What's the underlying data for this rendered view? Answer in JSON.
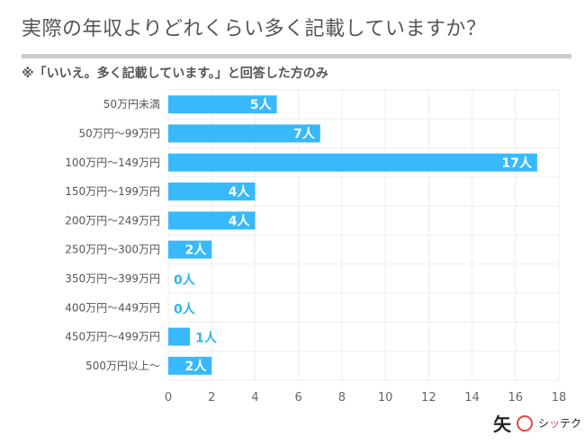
{
  "header": {
    "title": "実際の年収よりどれくらい多く記載していますか？",
    "subtitle": "※「いいえ。多く記載しています。」と回答した方のみ"
  },
  "logo": {
    "kanji": "矢",
    "text_a": "シ",
    "text_b": "ッ",
    "text_c": "テク"
  },
  "colors": {
    "bar": "#38b9fb",
    "grid": "#eeeeee",
    "value_outside": "#2cb6f5"
  },
  "chart_data": {
    "type": "bar",
    "orientation": "horizontal",
    "title": "実際の年収よりどれくらい多く記載していますか？",
    "subtitle": "※「いいえ。多く記載しています。」と回答した方のみ",
    "categories": [
      "50万円未満",
      "50万円〜99万円",
      "100万円〜149万円",
      "150万円〜199万円",
      "200万円〜249万円",
      "250万円〜300万円",
      "350万円〜399万円",
      "400万円〜449万円",
      "450万円〜499万円",
      "500万円以上〜"
    ],
    "values": [
      5,
      7,
      17,
      4,
      4,
      2,
      0,
      0,
      1,
      2
    ],
    "value_labels": [
      "5人",
      "7人",
      "17人",
      "4人",
      "4人",
      "2人",
      "0人",
      "0人",
      "1人",
      "2人"
    ],
    "unit": "人",
    "xlabel": "",
    "ylabel": "",
    "xlim": [
      0,
      18
    ],
    "xticks": [
      0,
      2,
      4,
      6,
      8,
      10,
      12,
      14,
      16,
      18
    ],
    "grid": true,
    "legend": "none"
  }
}
